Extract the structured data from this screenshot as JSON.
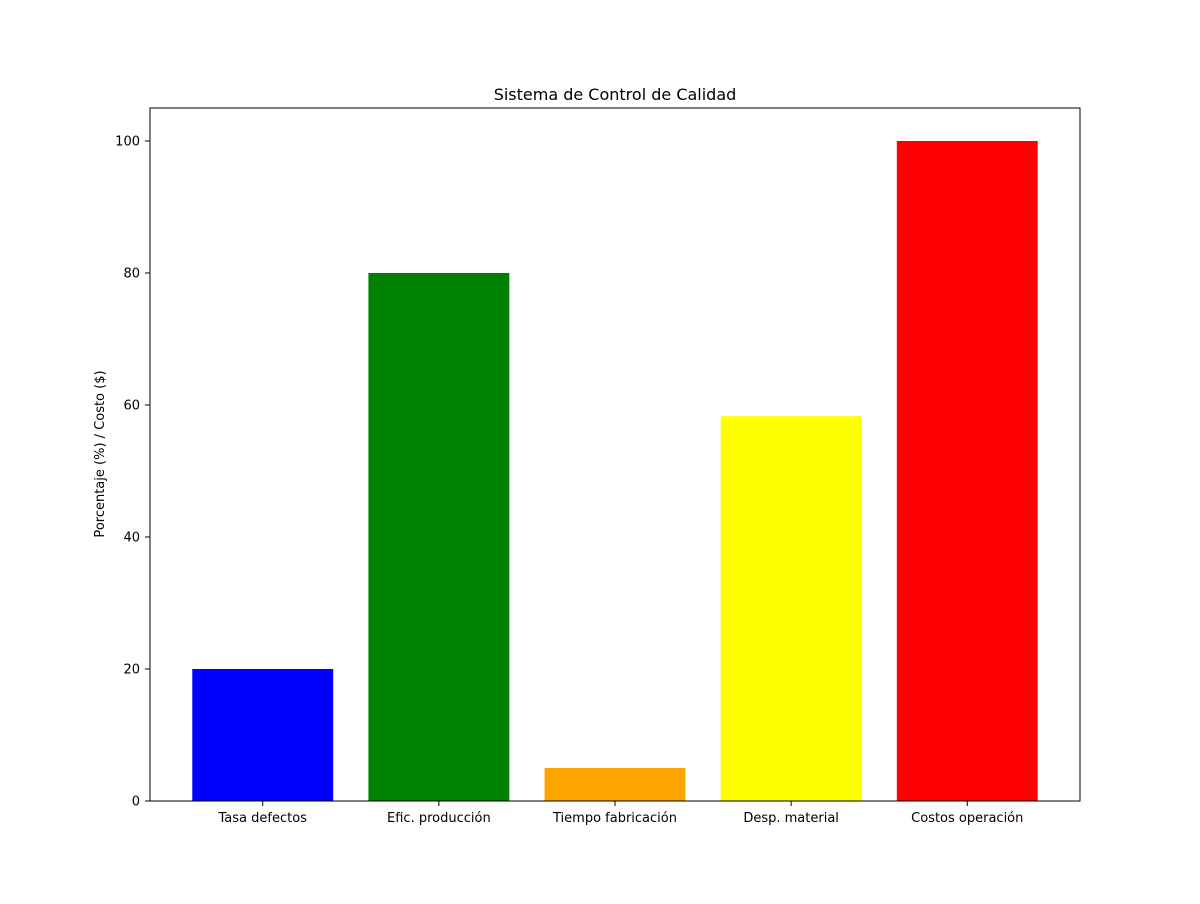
{
  "chart_data": {
    "type": "bar",
    "title": "Sistema de Control de Calidad",
    "xlabel": "",
    "ylabel": "Porcentaje (%) / Costo ($)",
    "categories": [
      "Tasa defectos",
      "Efic. producción",
      "Tiempo fabricación",
      "Desp. material",
      "Costos operación"
    ],
    "values": [
      20,
      80,
      5,
      58.3,
      100
    ],
    "colors": [
      "#0000ff",
      "#008000",
      "#ffa500",
      "#ffff00",
      "#ff0000"
    ],
    "ylim": [
      0,
      105
    ],
    "yticks": [
      "0",
      "20",
      "40",
      "60",
      "80",
      "100"
    ],
    "grid": false,
    "legend": "none"
  }
}
